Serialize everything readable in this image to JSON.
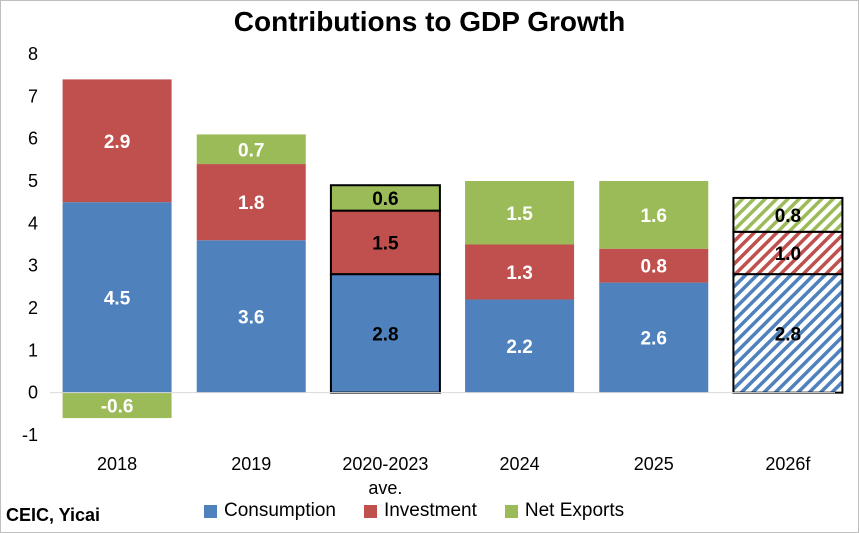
{
  "chart_data": {
    "type": "bar",
    "stacked": true,
    "title": "Contributions to GDP Growth",
    "categories": [
      "2018",
      "2019",
      "2020-2023 ave.",
      "2024",
      "2025",
      "2026f"
    ],
    "category_labels": [
      [
        "2018"
      ],
      [
        "2019"
      ],
      [
        "2020-2023",
        "ave."
      ],
      [
        "2024"
      ],
      [
        "2025"
      ],
      [
        "2026f"
      ]
    ],
    "series": [
      {
        "name": "Consumption",
        "values": [
          4.5,
          3.6,
          2.8,
          2.2,
          2.6,
          2.8
        ],
        "color": "#4f81bd"
      },
      {
        "name": "Investment",
        "values": [
          2.9,
          1.8,
          1.5,
          1.3,
          0.8,
          1.0
        ],
        "color": "#c0504d"
      },
      {
        "name": "Net Exports",
        "values": [
          -0.6,
          0.7,
          0.6,
          1.5,
          1.6,
          0.8
        ],
        "color": "#9bbb59"
      }
    ],
    "highlighted_categories": [
      "2020-2023 ave.",
      "2026f"
    ],
    "forecast_categories": [
      "2026f"
    ],
    "ylim": [
      -1,
      8
    ],
    "yticks": [
      "-1",
      "0",
      "1",
      "2",
      "3",
      "4",
      "5",
      "6",
      "7",
      "8"
    ],
    "xlabel": "",
    "ylabel": "",
    "grid": false,
    "legend_position": "bottom"
  },
  "source": "CEIC, Yicai"
}
